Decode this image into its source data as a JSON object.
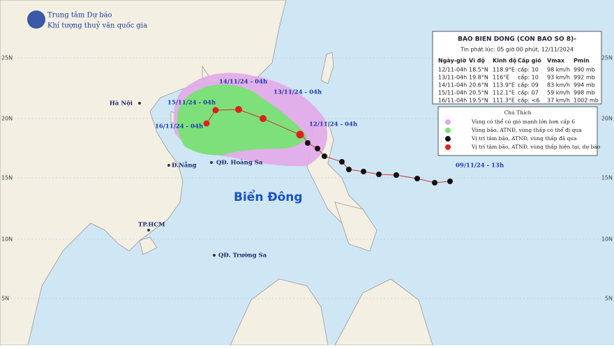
{
  "header": {
    "agency": "Trung tâm Dự báo",
    "subtitle": "Khí tượng thuỷ văn quốc gia"
  },
  "latitude_labels": [
    "25N",
    "20N",
    "15N",
    "10N",
    "5N"
  ],
  "places": [
    "Hà Nội",
    "Đ.Nẵng",
    "QĐ. Hoàng Sa",
    "TP.HCM",
    "QĐ. Trường Sa"
  ],
  "sea_label": "Biển Đông",
  "track_labels": [
    "14/11/24 - 04h",
    "13/11/24 - 04h",
    "15/11/24 - 04h",
    "16/11/24 - 04h",
    "12/11/24 - 04h",
    "09/11/24 - 13h"
  ],
  "bulletin": {
    "title": "BAO BIEN DONG (CON BAO SO 8)-",
    "issued": "Tin phát lúc: 05 giờ 00 phút, 12/11/2024",
    "columns": [
      "Ngày-giờ",
      "Vĩ độ",
      "Kinh độ",
      "Cấp gió",
      "Vmax",
      "Pmin"
    ],
    "rows": [
      [
        "12/11-04h",
        "18.5°N",
        "118.9°E",
        "cấp: 10",
        "98 km/h",
        "990 mb"
      ],
      [
        "13/11-04h",
        "19.8°N",
        "116°E",
        "cấp: 10",
        "93 km/h",
        "992 mb"
      ],
      [
        "14/11-04h",
        "20.6°N",
        "113.9°E",
        "cấp: 09",
        "83 km/h",
        "994 mb"
      ],
      [
        "15/11-04h",
        "20.5°N",
        "112.1°E",
        "cấp: 07",
        "59 km/h",
        "998 mb"
      ],
      [
        "16/11-04h",
        "19.5°N",
        "111.3°E",
        "cấp: <6",
        "37 km/h",
        "1002 mb"
      ]
    ]
  },
  "legend": {
    "title": "Chú Thích",
    "items": [
      "Vùng có thể có gió mạnh lớn hơn cấp 6",
      "Vùng bão, ATNĐ, vùng thấp có thể đi qua",
      "Vị trí tâm bão, ATNĐ, vùng thấp đã qua",
      "Vị trí tâm bão, ATNĐ, vùng thấp hiện tại, dự báo"
    ]
  }
}
